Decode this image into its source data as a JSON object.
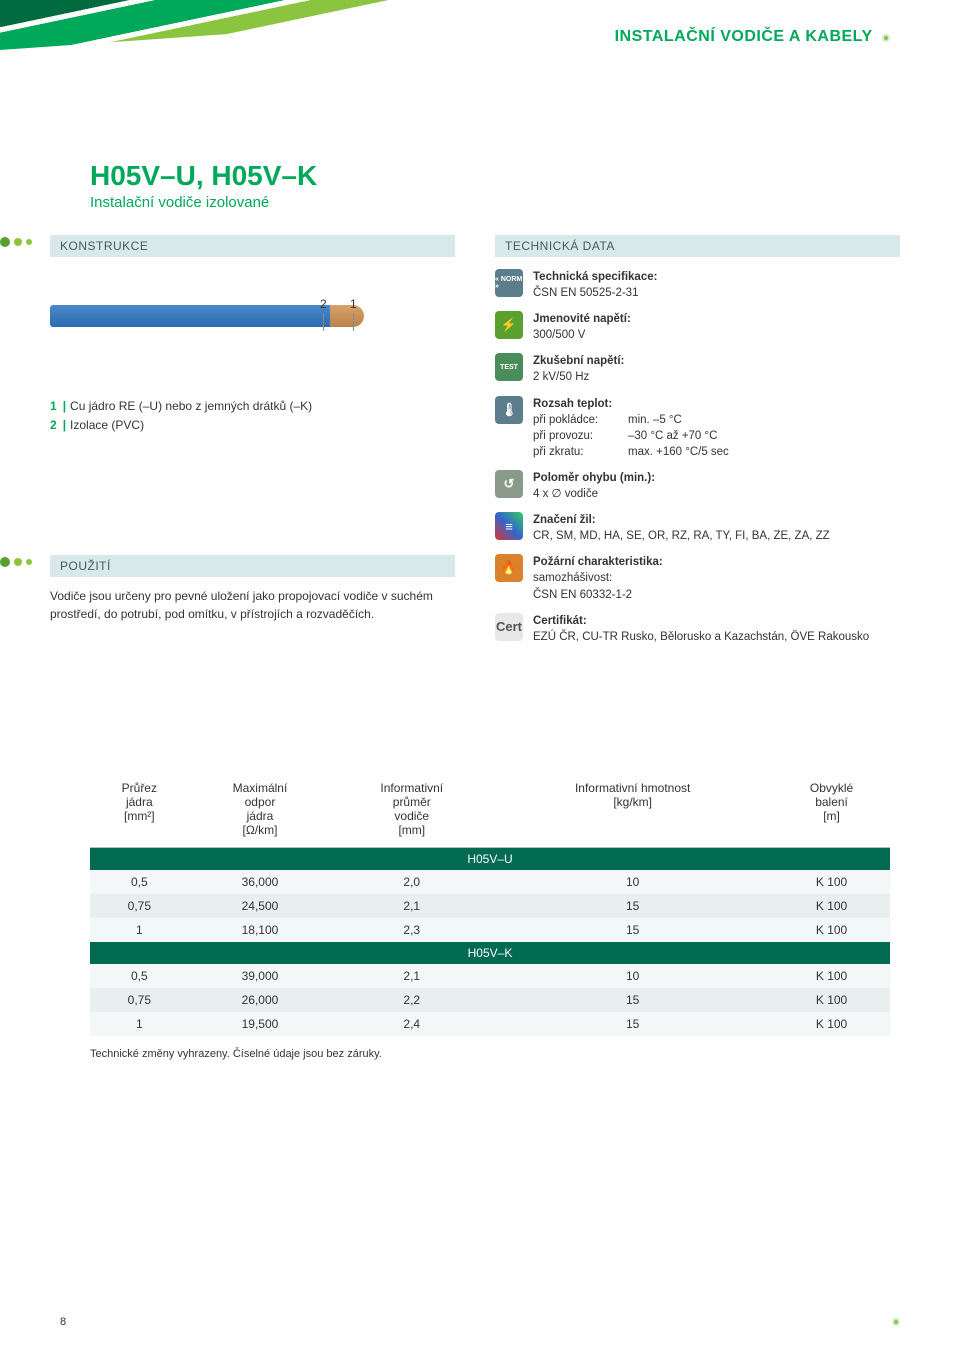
{
  "header": {
    "category": "INSTALAČNÍ VODIČE A KABELY"
  },
  "title": {
    "main": "H05V–U, H05V–K",
    "sub": "Instalační vodiče izolované"
  },
  "sections": {
    "konstrukce": "KONSTRUKCE",
    "technicka": "TECHNICKÁ DATA",
    "pouziti": "POUŽITÍ"
  },
  "diagram": {
    "label1": "1",
    "label2": "2"
  },
  "legend": {
    "l1_n": "1",
    "l1_t": "Cu jádro RE (–U) nebo z jemných drátků (–K)",
    "l2_n": "2",
    "l2_t": "Izolace (PVC)"
  },
  "use_text": "Vodiče jsou určeny pro pevné uložení jako propojovací vodiče v suchém prostředí, do potrubí, pod omítku, v přístrojích a rozvaděčích.",
  "tech": {
    "norm": {
      "icon": "« NORM »",
      "label": "Technická specifikace:",
      "value": "ČSN EN 50525-2-31"
    },
    "volt": {
      "icon": "⚡",
      "label": "Jmenovité napětí:",
      "value": "300/500 V"
    },
    "test": {
      "icon": "TEST",
      "label": "Zkušební napětí:",
      "value": "2 kV/50 Hz"
    },
    "temp": {
      "icon": "🌡",
      "label": "Rozsah teplot:",
      "r1k": "při pokládce:",
      "r1v": "min. –5 °C",
      "r2k": "při provozu:",
      "r2v": "–30 °C až +70 °C",
      "r3k": "při zkratu:",
      "r3v": "max. +160 °C/5 sec"
    },
    "bend": {
      "icon": "↺",
      "label": "Poloměr ohybu (min.):",
      "value": "4 x ∅ vodiče"
    },
    "mark": {
      "icon": "≡",
      "label": "Značení žil:",
      "value": "CR, SM, MD, HA, SE, OR, RZ, RA, TY, FI, BA, ZE, ZA, ZZ"
    },
    "fire": {
      "icon": "🔥",
      "label": "Požární charakteristika:",
      "sub": "samozhášivost:",
      "value": "ČSN EN 60332-1-2"
    },
    "cert": {
      "icon": "Cert",
      "label": "Certifikát:",
      "value": "EZÚ ČR, CU-TR Rusko, Bělorusko a Kazachstán, ÖVE Rakousko"
    }
  },
  "table": {
    "headers": {
      "c1a": "Průřez",
      "c1b": "jádra",
      "c1c": "[mm²]",
      "c2a": "Maximální",
      "c2b": "odpor",
      "c2c": "jádra",
      "c2d": "[Ω/km]",
      "c3a": "Informativní",
      "c3b": "průměr",
      "c3c": "vodiče",
      "c3d": "[mm]",
      "c4a": "Informativní hmotnost",
      "c4b": "[kg/km]",
      "c5a": "Obvyklé",
      "c5b": "balení",
      "c5c": "[m]"
    },
    "sub1": "H05V–U",
    "rows1": [
      [
        "0,5",
        "36,000",
        "2,0",
        "10",
        "K 100"
      ],
      [
        "0,75",
        "24,500",
        "2,1",
        "15",
        "K 100"
      ],
      [
        "1",
        "18,100",
        "2,3",
        "15",
        "K 100"
      ]
    ],
    "sub2": "H05V–K",
    "rows2": [
      [
        "0,5",
        "39,000",
        "2,1",
        "10",
        "K 100"
      ],
      [
        "0,75",
        "26,000",
        "2,2",
        "15",
        "K 100"
      ],
      [
        "1",
        "19,500",
        "2,4",
        "15",
        "K 100"
      ]
    ],
    "footnote": "Technické změny vyhrazeny. Číselné údaje jsou bez záruky."
  },
  "page_num": "8",
  "colors": {
    "green_dark": "#006b52",
    "green": "#00a859",
    "green_light": "#8bc53f",
    "section_bg": "#d9e8e8",
    "row_bg": "#e8efef"
  }
}
